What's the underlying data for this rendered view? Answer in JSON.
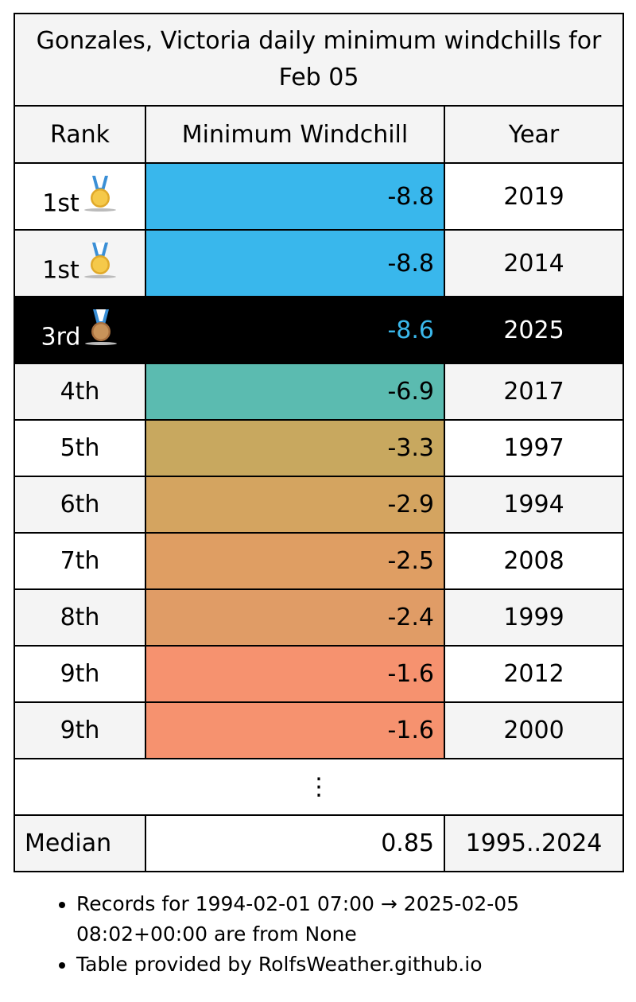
{
  "title": "Gonzales, Victoria daily minimum windchills for Feb 05",
  "headers": {
    "rank": "Rank",
    "value": "Minimum Windchill",
    "year": "Year"
  },
  "rows": [
    {
      "rank": "1st",
      "value": "-8.8",
      "year": "2019",
      "color": "#39b7ec",
      "medal": "gold"
    },
    {
      "rank": "1st",
      "value": "-8.8",
      "year": "2014",
      "color": "#39b7ec",
      "medal": "gold"
    },
    {
      "rank": "3rd",
      "value": "-8.6",
      "year": "2025",
      "color": "#000000",
      "medal": "bronze",
      "current": true
    },
    {
      "rank": "4th",
      "value": "-6.9",
      "year": "2017",
      "color": "#5bbbb0"
    },
    {
      "rank": "5th",
      "value": "-3.3",
      "year": "1997",
      "color": "#c8a85f"
    },
    {
      "rank": "6th",
      "value": "-2.9",
      "year": "1994",
      "color": "#d4a460"
    },
    {
      "rank": "7th",
      "value": "-2.5",
      "year": "2008",
      "color": "#df9e63"
    },
    {
      "rank": "8th",
      "value": "-2.4",
      "year": "1999",
      "color": "#e09c66"
    },
    {
      "rank": "9th",
      "value": "-1.6",
      "year": "2012",
      "color": "#f6926f"
    },
    {
      "rank": "9th",
      "value": "-1.6",
      "year": "2000",
      "color": "#f6926f"
    }
  ],
  "ellipsis": "⋮",
  "median": {
    "label": "Median",
    "value": "0.85",
    "range": "1995..2024"
  },
  "notes": [
    "Records for 1994-02-01 07:00 → 2025-02-05 08:02+00:00 are from None",
    "Table provided by RolfsWeather.github.io"
  ],
  "colors": {
    "highlight_text": "#3ab7ea",
    "header_bg": "#f4f4f4"
  }
}
